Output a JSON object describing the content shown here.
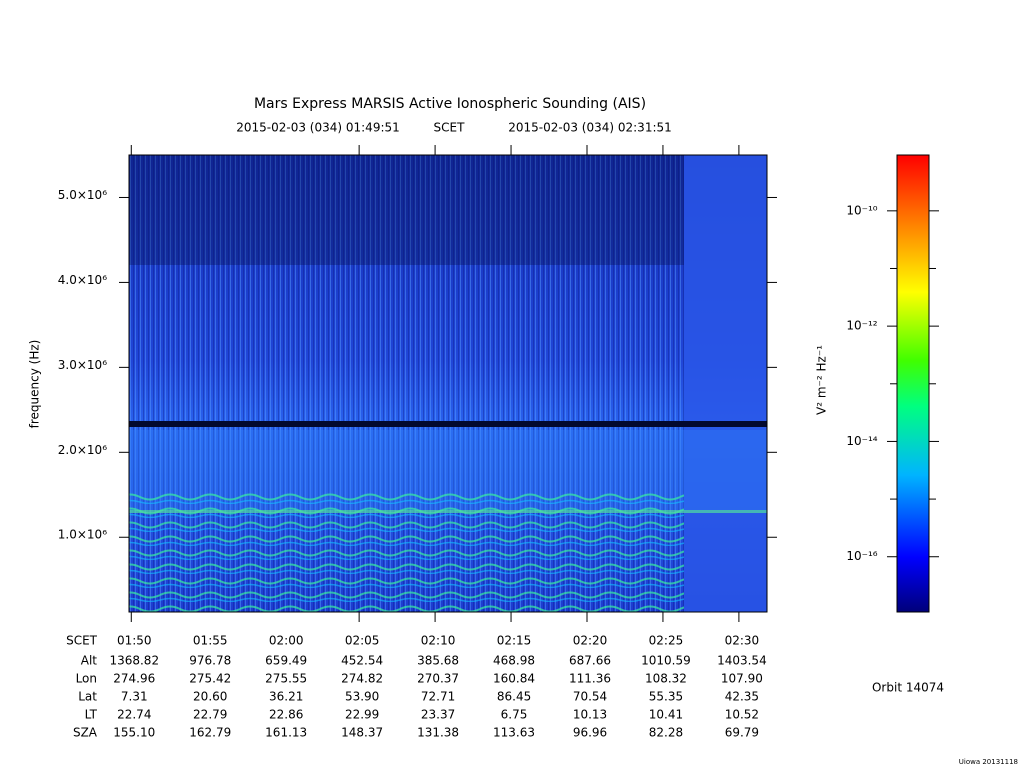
{
  "chart_data": {
    "type": "spectrogram",
    "title": "Mars Express MARSIS Active Ionospheric Sounding (AIS)",
    "time_start": "2015-02-03 (034) 01:49:51",
    "time_system": "SCET",
    "time_end": "2015-02-03 (034) 02:31:51",
    "ylabel": "frequency (Hz)",
    "xlim": [
      "01:49:51",
      "02:31:51"
    ],
    "xticks": [
      "01:50",
      "02:05",
      "02:10",
      "02:15",
      "02:20",
      "02:25",
      "02:30"
    ],
    "ylim": [
      120000,
      5500000
    ],
    "yticks": [
      {
        "value": 1000000,
        "label": "1.0×10⁶"
      },
      {
        "value": 2000000,
        "label": "2.0×10⁶"
      },
      {
        "value": 3000000,
        "label": "3.0×10⁶"
      },
      {
        "value": 4000000,
        "label": "4.0×10⁶"
      },
      {
        "value": 5000000,
        "label": "5.0×10⁶"
      }
    ],
    "colorbar": {
      "label": "V² m⁻² Hz⁻¹",
      "log_scale": true,
      "clim": [
        1.1e-17,
        9.3e-10
      ],
      "ticks": [
        {
          "value": 1e-10,
          "label": "10⁻¹⁰"
        },
        {
          "value": 1e-12,
          "label": "10⁻¹²"
        },
        {
          "value": 1e-14,
          "label": "10⁻¹⁴"
        },
        {
          "value": 1e-16,
          "label": "10⁻¹⁶"
        }
      ],
      "minor_ticks": [
        1e-11,
        1e-13,
        1e-15
      ],
      "colors": [
        "#00007a",
        "#0000ff",
        "#00b4ff",
        "#00ff80",
        "#40ff00",
        "#ffff00",
        "#ff8000",
        "#ff0000"
      ]
    },
    "ephemeris": {
      "rows": [
        {
          "label": "SCET",
          "values": [
            "01:50",
            "01:55",
            "02:00",
            "02:05",
            "02:10",
            "02:15",
            "02:20",
            "02:25",
            "02:30"
          ]
        },
        {
          "label": "Alt",
          "values": [
            "1368.82",
            "976.78",
            "659.49",
            "452.54",
            "385.68",
            "468.98",
            "687.66",
            "1010.59",
            "1403.54"
          ]
        },
        {
          "label": "Lon",
          "values": [
            "274.96",
            "275.42",
            "275.55",
            "274.82",
            "270.37",
            "160.84",
            "111.36",
            "108.32",
            "107.90"
          ]
        },
        {
          "label": "Lat",
          "values": [
            "7.31",
            "20.60",
            "36.21",
            "53.90",
            "72.71",
            "86.45",
            "70.54",
            "55.35",
            "42.35"
          ]
        },
        {
          "label": "LT",
          "values": [
            "22.74",
            "22.79",
            "22.86",
            "22.99",
            "23.37",
            "6.75",
            "10.13",
            "10.41",
            "10.52"
          ]
        },
        {
          "label": "SZA",
          "values": [
            "155.10",
            "162.79",
            "161.13",
            "148.37",
            "131.38",
            "113.63",
            "96.96",
            "82.28",
            "69.79"
          ]
        }
      ]
    },
    "orbit": "Orbit 14074",
    "credit": "Uiowa 20131118"
  }
}
